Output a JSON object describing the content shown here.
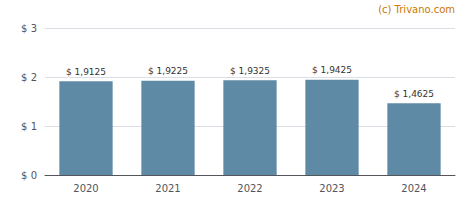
{
  "chart_data": {
    "type": "bar",
    "categories": [
      "2020",
      "2021",
      "2022",
      "2023",
      "2024"
    ],
    "values": [
      1.9125,
      1.9225,
      1.9325,
      1.9425,
      1.4625
    ],
    "value_labels": [
      "$ 1,9125",
      "$ 1,9225",
      "$ 1,9325",
      "$ 1,9425",
      "$ 1,4625"
    ],
    "data_labels": true,
    "color": "#5f8aa6",
    "ylim": [
      0,
      3
    ],
    "yticks": [
      {
        "value": 0,
        "label": "$ 0"
      },
      {
        "value": 1,
        "label": "$ 1"
      },
      {
        "value": 2,
        "label": "$ 2"
      },
      {
        "value": 3,
        "label": "$ 3"
      }
    ],
    "grid": true,
    "annotations": [
      {
        "text": "(c) Trivano.com",
        "color": "#cc7700"
      }
    ]
  }
}
